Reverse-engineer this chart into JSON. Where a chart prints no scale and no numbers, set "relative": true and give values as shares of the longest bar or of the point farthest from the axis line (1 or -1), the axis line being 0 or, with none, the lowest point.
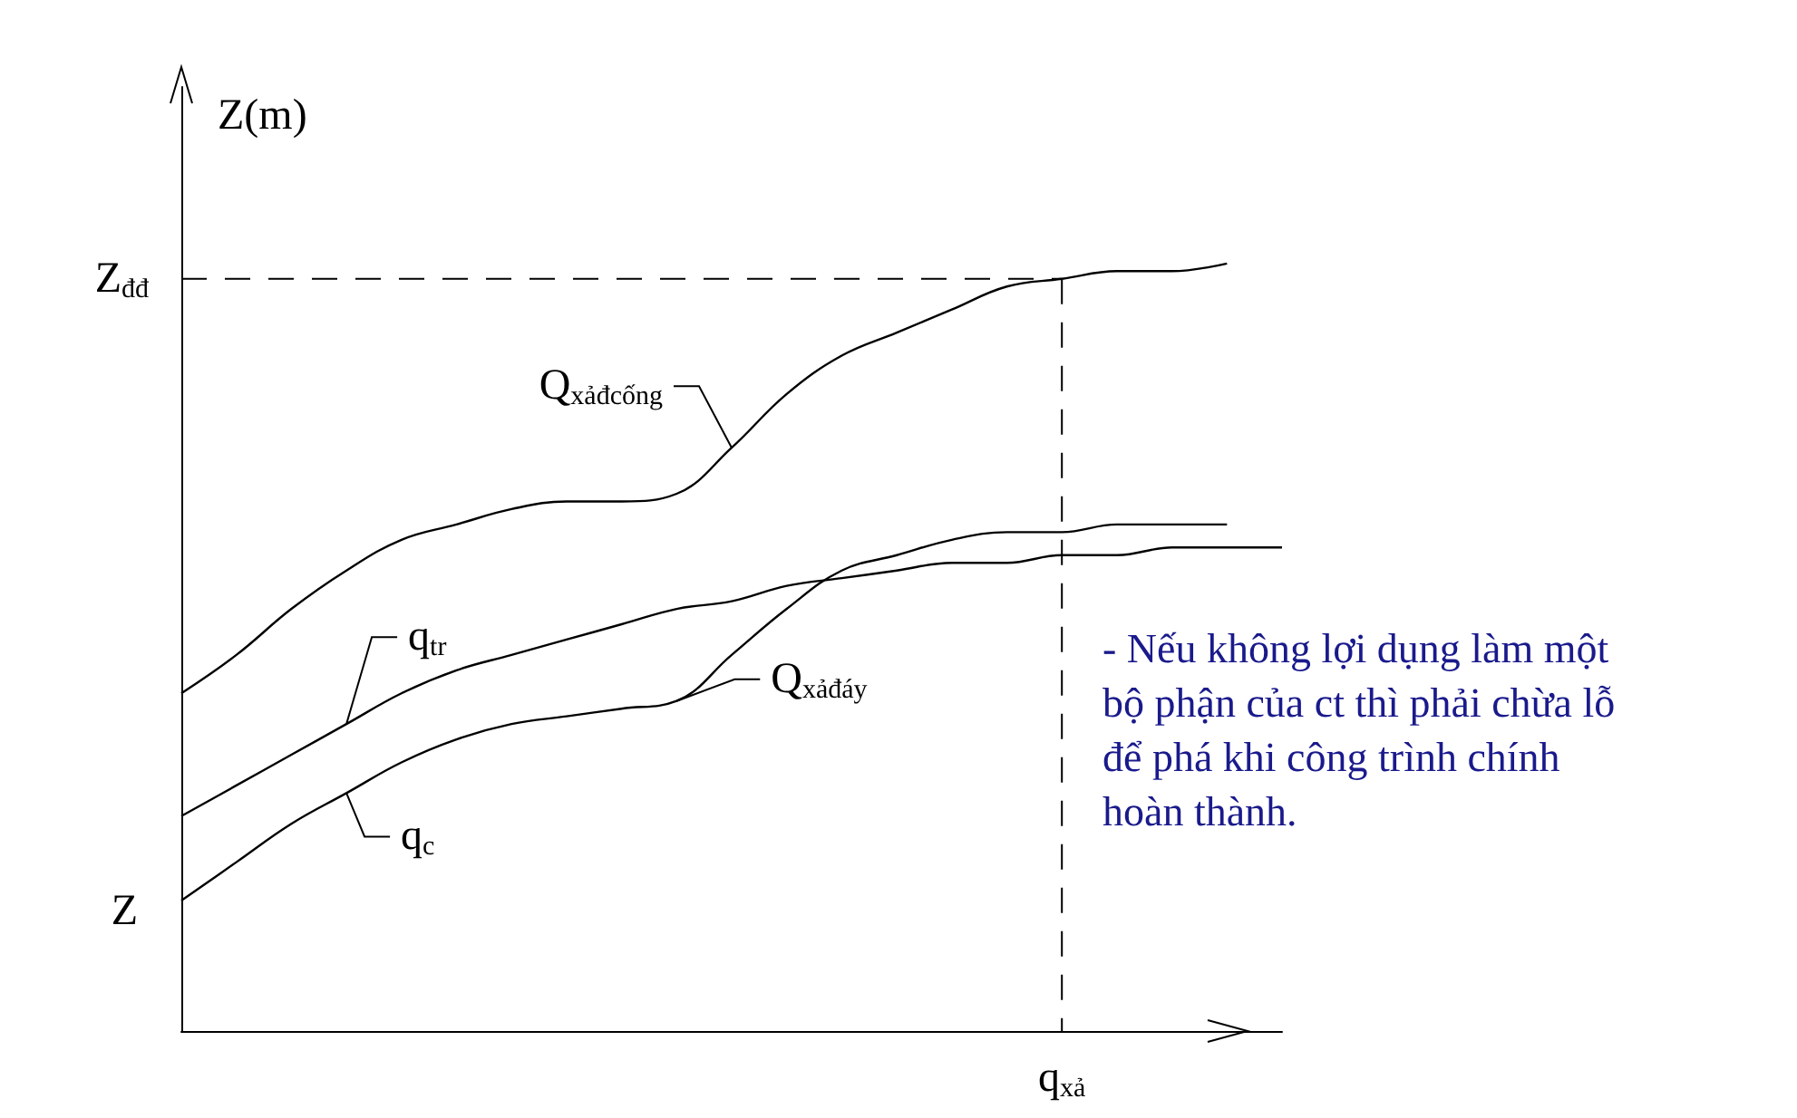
{
  "chart_data": {
    "type": "line",
    "relative": true,
    "legend": "left",
    "ylabel": "Z(m)",
    "grid": false,
    "marker": "none",
    "line_style": "solid",
    "categories": [
      null,
      null,
      null,
      null,
      null,
      null,
      null,
      null,
      null,
      null,
      null,
      null,
      null,
      null,
      null,
      null,
      null,
      null,
      null,
      null,
      null
    ],
    "series": [
      {
        "name": "Q$_{xảđcống}$",
        "color": "#000000",
        "values": [
          0.44,
          0.49,
          0.55,
          0.6,
          0.64,
          0.66,
          0.68,
          0.69,
          0.69,
          0.7,
          0.76,
          0.83,
          0.88,
          0.91,
          0.94,
          0.97,
          0.98,
          0.99,
          0.99,
          1.0,
          null
        ]
      },
      {
        "name": "q$_{tr}$",
        "color": "#000000",
        "values": [
          0.28,
          0.32,
          0.36,
          0.4,
          0.44,
          0.47,
          0.49,
          0.51,
          0.53,
          0.55,
          0.56,
          0.58,
          0.59,
          0.6,
          0.61,
          0.61,
          0.62,
          0.62,
          0.63,
          0.63,
          0.63
        ]
      },
      {
        "name": "q$_{c}$",
        "color": "#000000",
        "values": [
          0.17,
          0.22,
          0.27,
          0.31,
          0.35,
          0.38,
          0.4,
          0.41,
          0.42,
          0.43,
          0.49,
          0.55,
          0.6,
          0.62,
          0.64,
          0.65,
          0.65,
          0.66,
          0.66,
          0.66,
          null
        ]
      }
    ],
    "ref_lines": [
      {
        "axis": "y",
        "value": 0.98,
        "label": "Z$_{đđ}$",
        "line_style": "dashed"
      }
    ],
    "annotations": [
      "Z",
      "q$_{xả}$",
      "Q$_{xảđáy}$",
      "- Nếu không lợi dụng làm một bộ phận của ct thì phải chừa lỗ để phá khi công trình chính hoàn thành."
    ]
  }
}
